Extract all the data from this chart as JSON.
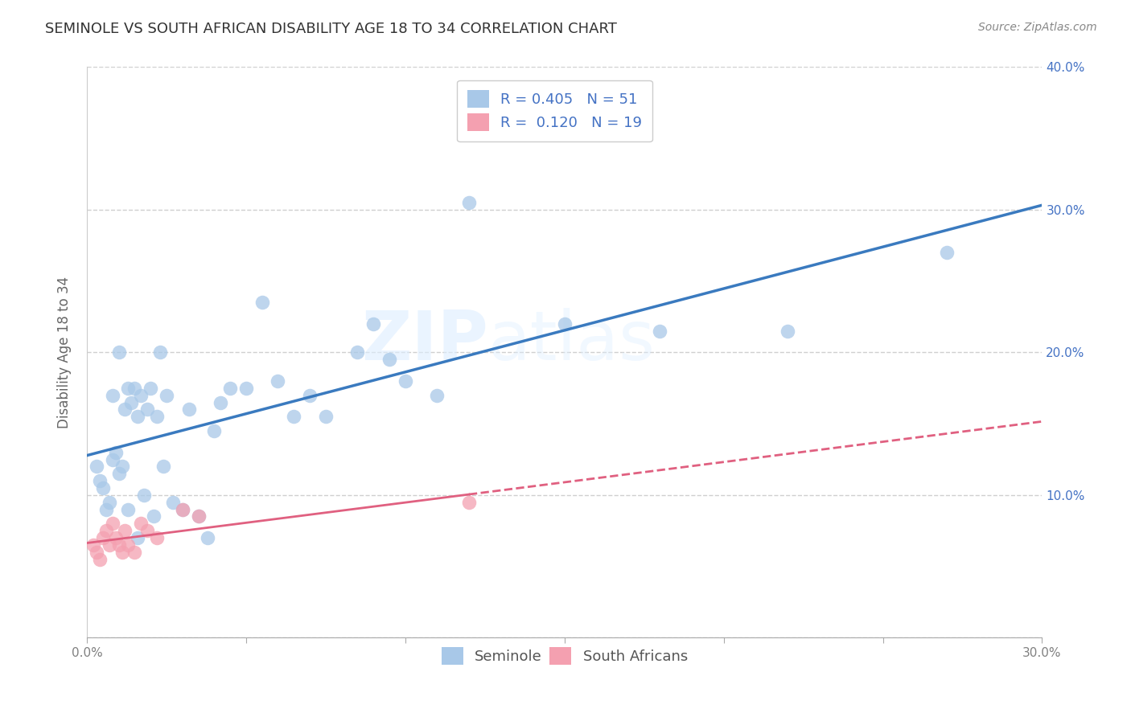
{
  "title": "SEMINOLE VS SOUTH AFRICAN DISABILITY AGE 18 TO 34 CORRELATION CHART",
  "source": "Source: ZipAtlas.com",
  "ylabel": "Disability Age 18 to 34",
  "xlim": [
    0.0,
    0.3
  ],
  "ylim": [
    0.0,
    0.4
  ],
  "xticks": [
    0.0,
    0.05,
    0.1,
    0.15,
    0.2,
    0.25,
    0.3
  ],
  "yticks": [
    0.0,
    0.1,
    0.2,
    0.3,
    0.4
  ],
  "seminole_R": 0.405,
  "seminole_N": 51,
  "south_african_R": 0.12,
  "south_african_N": 19,
  "blue_color": "#a8c8e8",
  "pink_color": "#f4a0b0",
  "blue_line_color": "#3a7abf",
  "pink_line_color": "#e06080",
  "tick_color_y": "#4472C4",
  "tick_color_x": "#808080",
  "grid_color": "#d0d0d0",
  "seminole_x": [
    0.003,
    0.004,
    0.005,
    0.006,
    0.007,
    0.008,
    0.008,
    0.009,
    0.01,
    0.01,
    0.011,
    0.012,
    0.013,
    0.013,
    0.014,
    0.015,
    0.016,
    0.016,
    0.017,
    0.018,
    0.019,
    0.02,
    0.021,
    0.022,
    0.023,
    0.024,
    0.025,
    0.027,
    0.03,
    0.032,
    0.035,
    0.038,
    0.04,
    0.042,
    0.045,
    0.05,
    0.055,
    0.06,
    0.065,
    0.07,
    0.075,
    0.085,
    0.09,
    0.095,
    0.1,
    0.11,
    0.12,
    0.15,
    0.18,
    0.22,
    0.27
  ],
  "seminole_y": [
    0.12,
    0.11,
    0.105,
    0.09,
    0.095,
    0.125,
    0.17,
    0.13,
    0.115,
    0.2,
    0.12,
    0.16,
    0.175,
    0.09,
    0.165,
    0.175,
    0.07,
    0.155,
    0.17,
    0.1,
    0.16,
    0.175,
    0.085,
    0.155,
    0.2,
    0.12,
    0.17,
    0.095,
    0.09,
    0.16,
    0.085,
    0.07,
    0.145,
    0.165,
    0.175,
    0.175,
    0.235,
    0.18,
    0.155,
    0.17,
    0.155,
    0.2,
    0.22,
    0.195,
    0.18,
    0.17,
    0.305,
    0.22,
    0.215,
    0.215,
    0.27
  ],
  "south_african_x": [
    0.002,
    0.003,
    0.004,
    0.005,
    0.006,
    0.007,
    0.008,
    0.009,
    0.01,
    0.011,
    0.012,
    0.013,
    0.015,
    0.017,
    0.019,
    0.022,
    0.03,
    0.035,
    0.12
  ],
  "south_african_y": [
    0.065,
    0.06,
    0.055,
    0.07,
    0.075,
    0.065,
    0.08,
    0.07,
    0.065,
    0.06,
    0.075,
    0.065,
    0.06,
    0.08,
    0.075,
    0.07,
    0.09,
    0.085,
    0.095
  ]
}
